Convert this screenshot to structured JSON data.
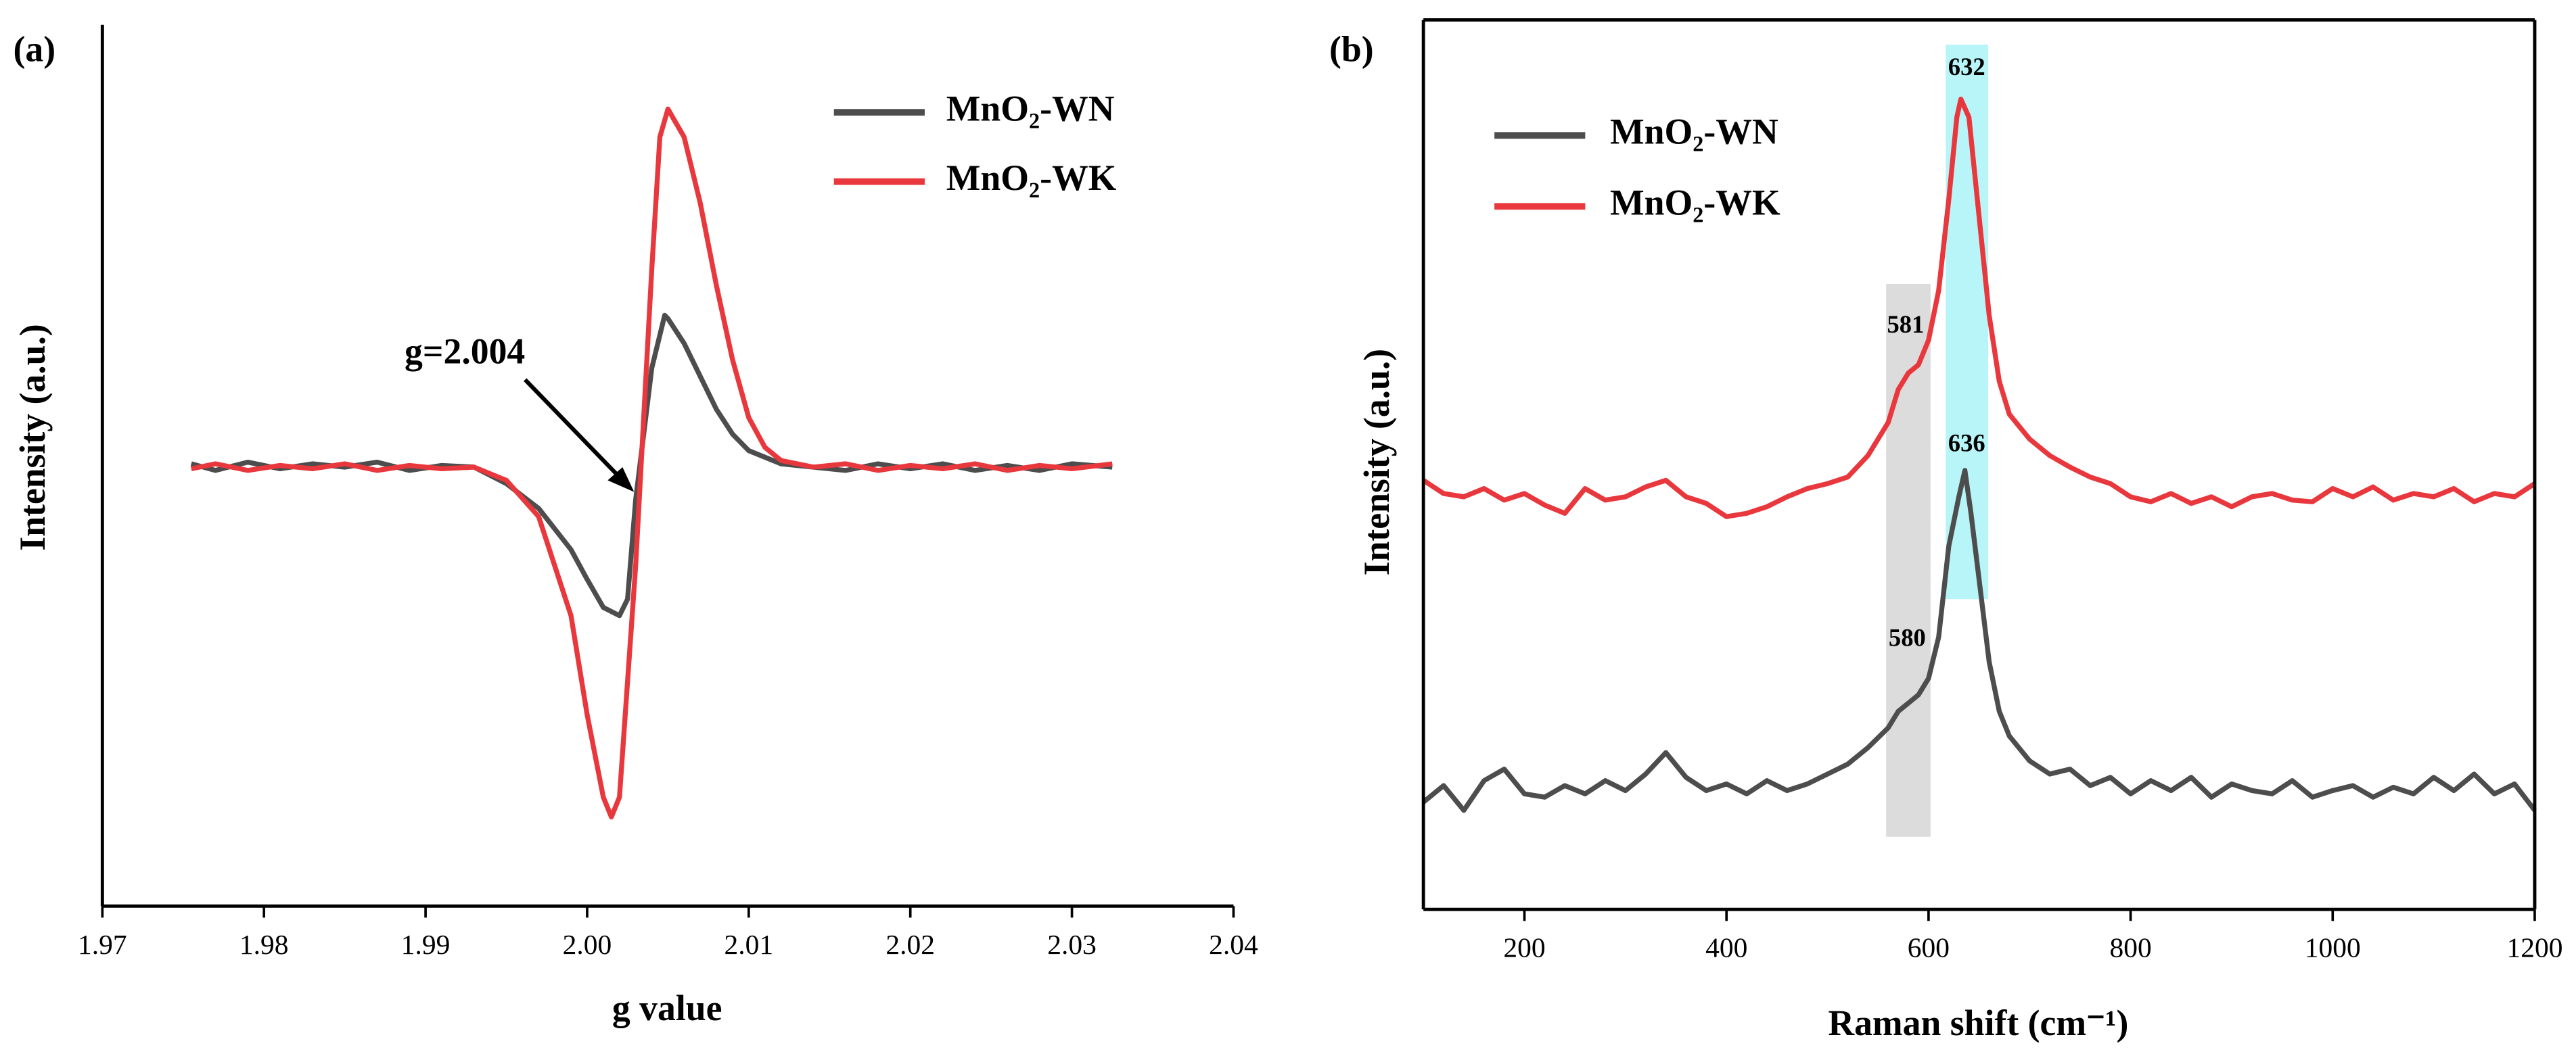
{
  "chart_data": [
    {
      "type": "line",
      "panel_label": "(a)",
      "x_label": "g value",
      "y_label": "Intensity (a.u.)",
      "box": false,
      "annotation": "g=2.004",
      "xlim": [
        1.97,
        2.04
      ],
      "ylim": [
        -266,
        268
      ],
      "xticks": [
        1.97,
        1.98,
        1.99,
        {
          "value": 2,
          "label": "2.00"
        },
        2.01,
        2.02,
        2.03,
        2.04
      ],
      "series": [
        {
          "name": "MnO₂-WN",
          "color": "#4d4d4d",
          "x": [
            1.9755,
            1.977,
            1.979,
            1.981,
            1.983,
            1.985,
            1.987,
            1.989,
            1.991,
            1.993,
            1.995,
            1.997,
            1.999,
            2.0,
            2.001,
            2.002,
            2.0025,
            2.003,
            2.004,
            2.0048,
            2.005,
            2.006,
            2.007,
            2.008,
            2.009,
            2.01,
            2.012,
            2.014,
            2.016,
            2.018,
            2.02,
            2.022,
            2.024,
            2.026,
            2.028,
            2.03,
            2.0325
          ],
          "values": [
            2,
            -2,
            3,
            -1,
            2,
            0,
            3,
            -2,
            1,
            0,
            -10,
            -25,
            -50,
            -68,
            -85,
            -90,
            -80,
            -20,
            60,
            92,
            90,
            75,
            55,
            35,
            20,
            10,
            2,
            0,
            -2,
            2,
            -1,
            2,
            -2,
            1,
            -2,
            2,
            0
          ]
        },
        {
          "name": "MnO₂-WK",
          "color": "#e8383d",
          "x": [
            1.9755,
            1.977,
            1.979,
            1.981,
            1.983,
            1.985,
            1.987,
            1.989,
            1.991,
            1.993,
            1.995,
            1.997,
            1.999,
            2.0,
            2.001,
            2.0015,
            2.002,
            2.003,
            2.004,
            2.0045,
            2.005,
            2.006,
            2.007,
            2.008,
            2.009,
            2.01,
            2.011,
            2.012,
            2.014,
            2.016,
            2.018,
            2.02,
            2.022,
            2.024,
            2.026,
            2.028,
            2.03,
            2.0325
          ],
          "values": [
            -1,
            2,
            -2,
            1,
            -1,
            2,
            -2,
            1,
            -1,
            0,
            -8,
            -30,
            -90,
            -150,
            -200,
            -212,
            -200,
            -60,
            120,
            200,
            217,
            200,
            160,
            110,
            65,
            30,
            12,
            4,
            0,
            2,
            -2,
            1,
            -1,
            2,
            -2,
            1,
            -1,
            2
          ]
        }
      ]
    },
    {
      "type": "line",
      "panel_label": "(b)",
      "x_label": "Raman shift (cm⁻¹)",
      "y_label": "Intensity (a.u.)",
      "box": true,
      "annotations": [
        632,
        636,
        581,
        580
      ],
      "highlight_bands": [
        {
          "x": [
            558,
            602
          ],
          "y": [
            44,
            379
          ],
          "color": "#dcdcdc"
        },
        {
          "x": [
            617,
            659
          ],
          "y": [
            188,
            524
          ],
          "color": "#b8f5f8"
        }
      ],
      "xlim": [
        100,
        1200
      ],
      "ylim": [
        0,
        539
      ],
      "xticks": [
        200,
        400,
        600,
        800,
        1000,
        1200
      ],
      "series": [
        {
          "name": "MnO₂-WN",
          "color": "#4d4d4d",
          "x": [
            100,
            120,
            140,
            160,
            180,
            200,
            220,
            240,
            260,
            280,
            300,
            320,
            340,
            360,
            380,
            400,
            420,
            440,
            460,
            480,
            500,
            520,
            540,
            560,
            570,
            580,
            590,
            600,
            610,
            620,
            630,
            636,
            642,
            650,
            660,
            670,
            680,
            700,
            720,
            740,
            760,
            780,
            800,
            820,
            840,
            860,
            880,
            900,
            920,
            940,
            960,
            980,
            1000,
            1020,
            1040,
            1060,
            1080,
            1100,
            1120,
            1140,
            1160,
            1180,
            1200
          ],
          "values": [
            65,
            75,
            60,
            78,
            85,
            70,
            68,
            75,
            70,
            78,
            72,
            82,
            95,
            80,
            72,
            76,
            70,
            78,
            72,
            76,
            82,
            88,
            98,
            110,
            120,
            125,
            130,
            140,
            165,
            220,
            250,
            266,
            240,
            200,
            150,
            120,
            105,
            90,
            82,
            85,
            75,
            80,
            70,
            78,
            72,
            80,
            68,
            76,
            72,
            70,
            78,
            68,
            72,
            75,
            68,
            74,
            70,
            80,
            72,
            82,
            70,
            76,
            60
          ]
        },
        {
          "name": "MnO₂-WK",
          "color": "#e8383d",
          "x": [
            100,
            120,
            140,
            160,
            180,
            200,
            220,
            240,
            260,
            280,
            300,
            320,
            340,
            360,
            380,
            400,
            420,
            440,
            460,
            480,
            500,
            520,
            540,
            560,
            570,
            580,
            590,
            600,
            610,
            620,
            628,
            632,
            640,
            650,
            660,
            670,
            680,
            700,
            720,
            740,
            760,
            780,
            800,
            820,
            840,
            860,
            880,
            900,
            920,
            940,
            960,
            980,
            1000,
            1020,
            1040,
            1060,
            1080,
            1100,
            1120,
            1140,
            1160,
            1180,
            1200
          ],
          "values": [
            260,
            252,
            250,
            255,
            248,
            252,
            245,
            240,
            255,
            248,
            250,
            256,
            260,
            250,
            246,
            238,
            240,
            244,
            250,
            255,
            258,
            262,
            275,
            295,
            315,
            325,
            330,
            345,
            375,
            430,
            480,
            491,
            480,
            420,
            360,
            320,
            300,
            285,
            275,
            268,
            262,
            258,
            250,
            247,
            252,
            246,
            250,
            244,
            250,
            252,
            248,
            247,
            255,
            250,
            256,
            248,
            252,
            250,
            255,
            247,
            252,
            250,
            258
          ]
        }
      ]
    }
  ]
}
